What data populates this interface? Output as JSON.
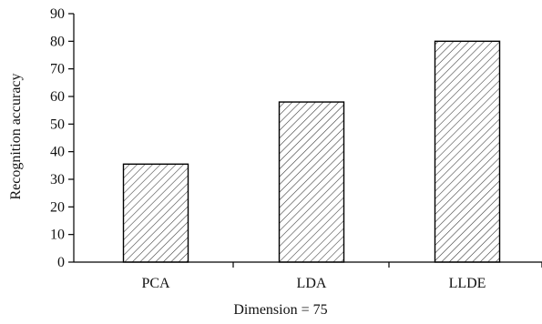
{
  "chart_data": {
    "type": "bar",
    "categories": [
      "PCA",
      "LDA",
      "LLDE"
    ],
    "values": [
      35.5,
      58,
      80
    ],
    "xlabel": "Dimension = 75",
    "ylabel": "Recognition accuracy",
    "ylim": [
      0,
      90
    ],
    "yticks": [
      0,
      10,
      20,
      30,
      40,
      50,
      60,
      70,
      80,
      90
    ],
    "grid": false,
    "bar_fill": "hatched",
    "bar_color": "#ffffff",
    "bar_edge_color": "#000000",
    "hatch_color": "#333333"
  }
}
